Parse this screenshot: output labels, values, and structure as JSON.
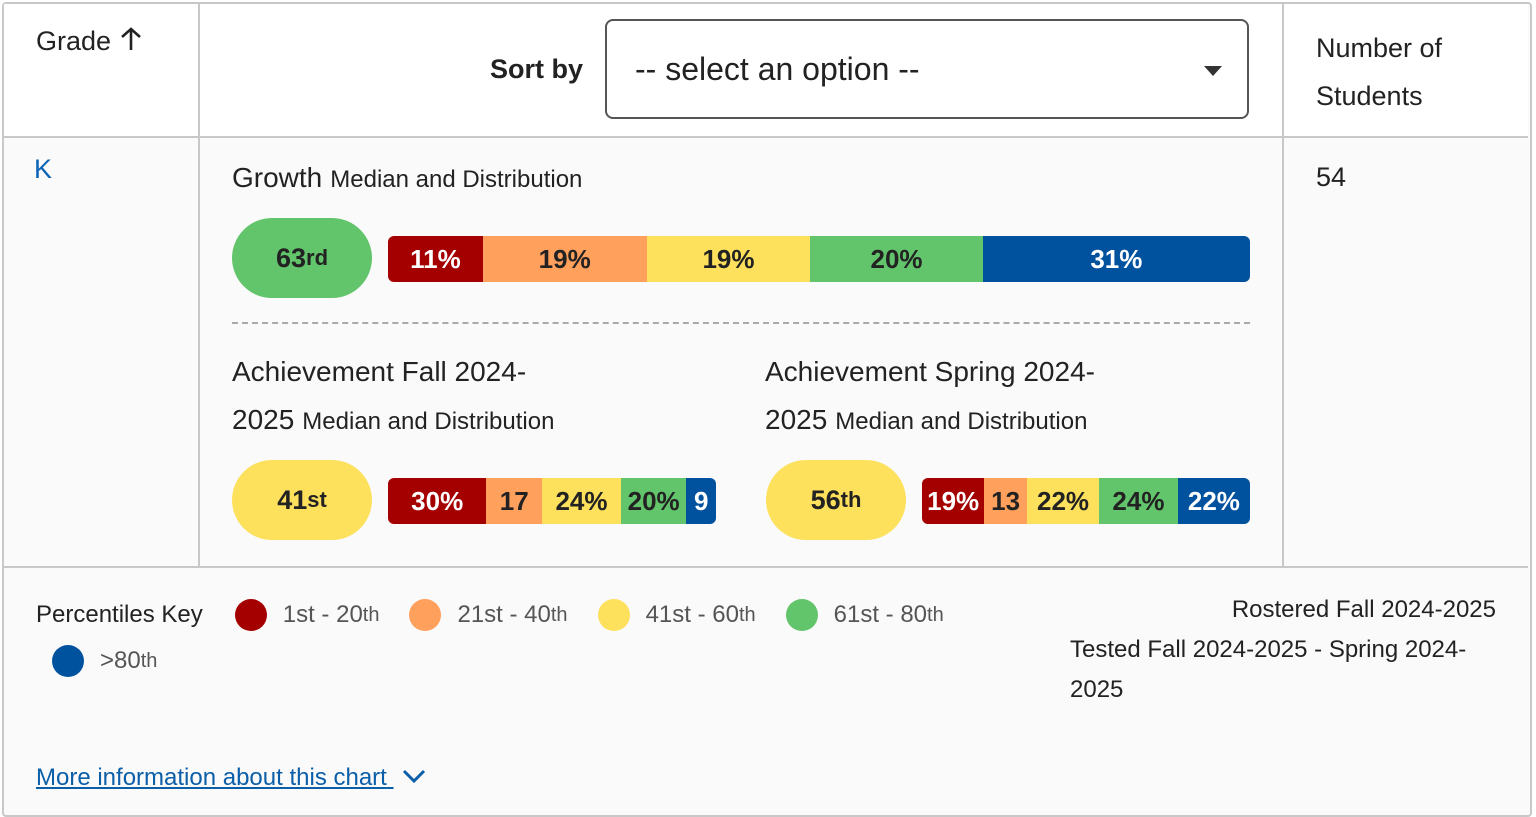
{
  "header": {
    "grade": "Grade",
    "sort_by": "Sort by",
    "select": "-- select an option --",
    "students": "Number of Students"
  },
  "row": {
    "grade": "K",
    "students": 54,
    "growth": {
      "title": "Growth",
      "subtitle": "Median and Distribution",
      "median": 63,
      "median_suffix": "rd",
      "median_color": "#62c46b",
      "values": [
        11,
        19,
        19,
        20,
        31
      ],
      "value_labels": [
        "11%",
        "19%",
        "19%",
        "20%",
        "31%"
      ]
    },
    "fall": {
      "title": "Achievement Fall 2024-2025",
      "subtitle": "Median and Distribution",
      "median": 41,
      "median_suffix": "st",
      "median_color": "#fde05c",
      "values": [
        30,
        17,
        24,
        20,
        9
      ],
      "value_labels": [
        "30%",
        "17",
        "24%",
        "20%",
        "9"
      ]
    },
    "spring": {
      "title": "Achievement Spring 2024-2025",
      "subtitle": "Median and Distribution",
      "median": 56,
      "median_suffix": "th",
      "median_color": "#fde05c",
      "values": [
        19,
        13,
        22,
        24,
        22
      ],
      "value_labels": [
        "19%",
        "13",
        "22%",
        "24%",
        "22%"
      ]
    }
  },
  "key": {
    "title": "Percentiles Key",
    "items": [
      {
        "label": "1st - 20",
        "sup": "th",
        "color": "#a50000"
      },
      {
        "label": "21st - 40",
        "sup": "th",
        "color": "#ffa05c"
      },
      {
        "label": "41st - 60",
        "sup": "th",
        "color": "#fde05c"
      },
      {
        "label": "61st - 80",
        "sup": "th",
        "color": "#62c46b"
      },
      {
        "label": ">80",
        "sup": "th",
        "color": "#00519e"
      }
    ]
  },
  "rostered": "Rostered Fall 2024-2025",
  "tested": "Tested Fall 2024-2025 - Spring 2024-2025",
  "more_info": "More information about this chart"
}
